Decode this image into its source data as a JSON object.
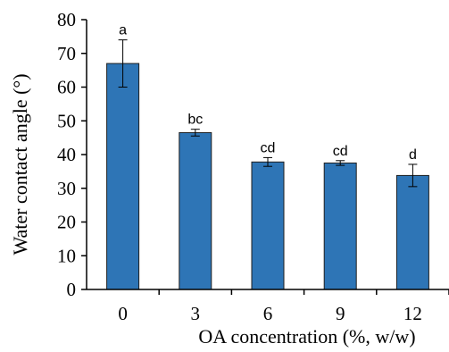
{
  "chart_data": {
    "type": "bar",
    "categories": [
      "0",
      "3",
      "6",
      "9",
      "12"
    ],
    "values": [
      67,
      46.5,
      37.8,
      37.5,
      33.8
    ],
    "errors": [
      7,
      1,
      1.3,
      0.7,
      3.3
    ],
    "annotations": [
      "a",
      "bc",
      "cd",
      "cd",
      "d"
    ],
    "xlabel": "OA concentration (%, w/w)",
    "ylabel": "Water contact angle (°)",
    "ylim": [
      0,
      80
    ],
    "yticks": [
      "0",
      "10",
      "20",
      "30",
      "40",
      "50",
      "60",
      "70",
      "80"
    ],
    "bar_color": "#2e75b6",
    "grid": false
  }
}
